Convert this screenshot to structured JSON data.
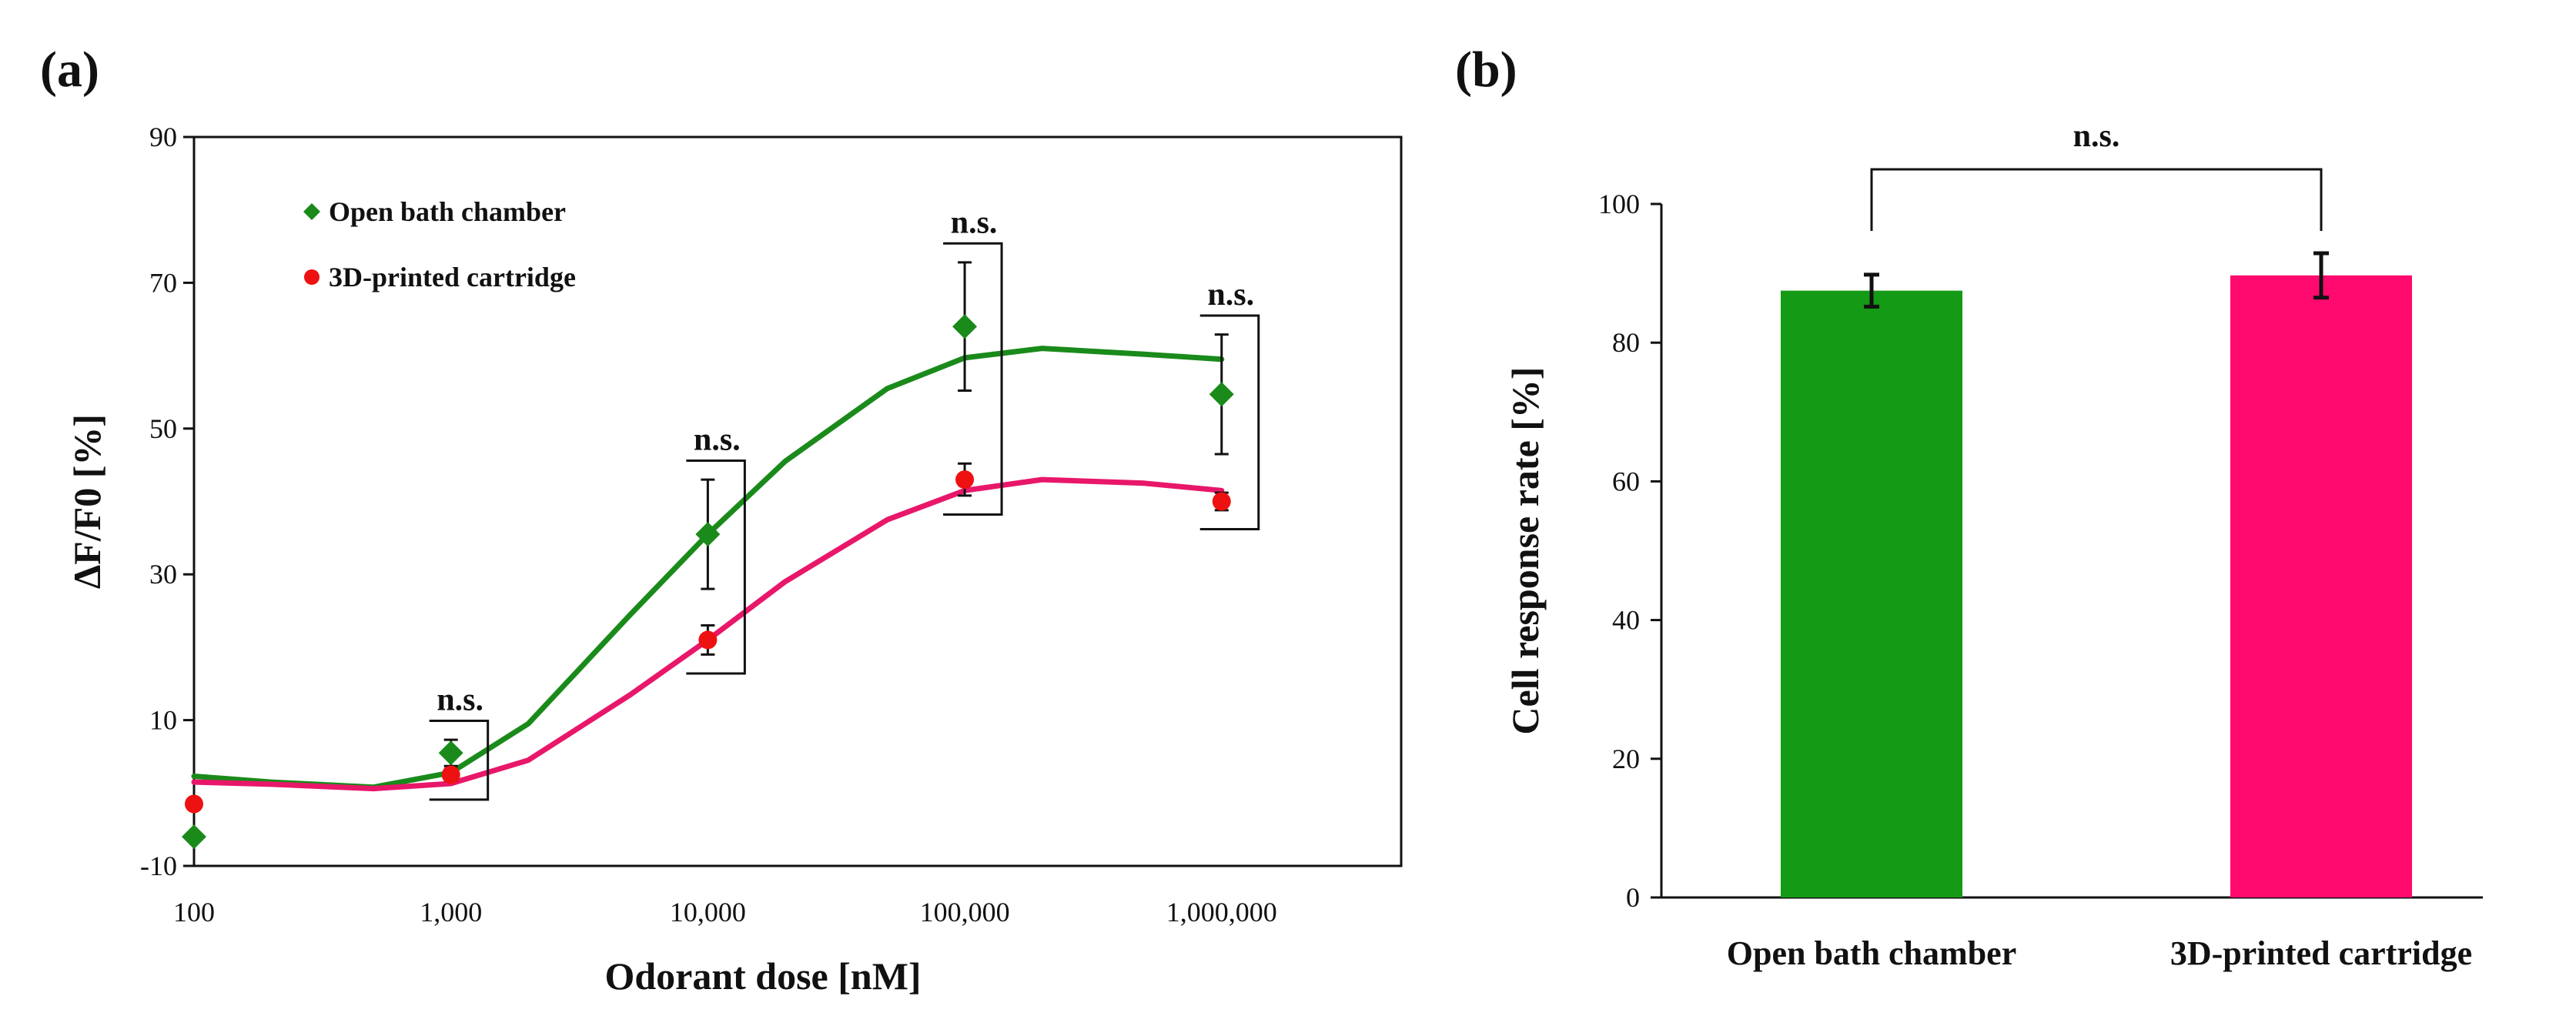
{
  "figure": {
    "panel_a_label": "(a)",
    "panel_b_label": "(b)"
  },
  "chart_data": [
    {
      "type": "scatter",
      "panel": "(a)",
      "title": "",
      "xlabel": "Odorant dose [nM]",
      "ylabel": "ΔF/F0 [%]",
      "xscale": "log",
      "xlim": [
        100,
        5000000
      ],
      "ylim": [
        -10,
        90
      ],
      "xticks": [
        100,
        1000,
        10000,
        100000,
        1000000
      ],
      "xticklabels": [
        "100",
        "1,000",
        "10,000",
        "100,000",
        "1,000,000"
      ],
      "yticks": [
        -10,
        10,
        30,
        50,
        70,
        90
      ],
      "yticklabels": [
        "-10",
        "10",
        "30",
        "50",
        "70",
        "90"
      ],
      "legend_position": "top-left",
      "series": [
        {
          "name": "Open bath chamber",
          "marker": "diamond",
          "color": "#1a8a1a",
          "x": [
            100,
            1000,
            10000,
            100000,
            1000000
          ],
          "y": [
            -6,
            5.5,
            35.5,
            64,
            54.7
          ],
          "err": [
            0,
            1.8,
            7.5,
            8.8,
            8.2
          ],
          "fit_x": [
            100,
            200,
            500,
            1000,
            2000,
            5000,
            10000,
            20000,
            50000,
            100000,
            200000,
            500000,
            1000000
          ],
          "fit_y": [
            2.3,
            1.5,
            0.8,
            2.8,
            9.5,
            24.5,
            35.5,
            45.5,
            55.5,
            59.7,
            61,
            60.2,
            59.5
          ]
        },
        {
          "name": "3D-printed cartridge",
          "marker": "circle",
          "color": "#ee1111",
          "fit_color": "#e8176a",
          "x": [
            100,
            1000,
            10000,
            100000,
            1000000
          ],
          "y": [
            -1.5,
            2.5,
            21,
            43,
            40
          ],
          "err": [
            0,
            0.8,
            2,
            2.2,
            1.2
          ],
          "fit_x": [
            100,
            200,
            500,
            1000,
            2000,
            5000,
            10000,
            20000,
            50000,
            100000,
            200000,
            500000,
            1000000
          ],
          "fit_y": [
            1.5,
            1.2,
            0.6,
            1.3,
            4.5,
            13.5,
            21,
            29,
            37.5,
            41.5,
            43,
            42.5,
            41.5
          ]
        }
      ],
      "annotations": [
        {
          "text": "n.s.",
          "x": 1000
        },
        {
          "text": "n.s.",
          "x": 10000
        },
        {
          "text": "n.s.",
          "x": 100000
        },
        {
          "text": "n.s.",
          "x": 1000000
        }
      ]
    },
    {
      "type": "bar",
      "panel": "(b)",
      "title": "",
      "xlabel": "",
      "ylabel": "Cell response rate [%]",
      "ylim": [
        0,
        100
      ],
      "yticks": [
        0,
        20,
        40,
        60,
        80,
        100
      ],
      "yticklabels": [
        "0",
        "20",
        "40",
        "60",
        "80",
        "100"
      ],
      "categories": [
        "Open bath chamber",
        "3D-printed cartridge"
      ],
      "values": [
        87.5,
        89.7
      ],
      "errors": [
        2.3,
        3.2
      ],
      "colors": [
        "#159a15",
        "#ff0a6e"
      ],
      "significance": "n.s."
    }
  ]
}
